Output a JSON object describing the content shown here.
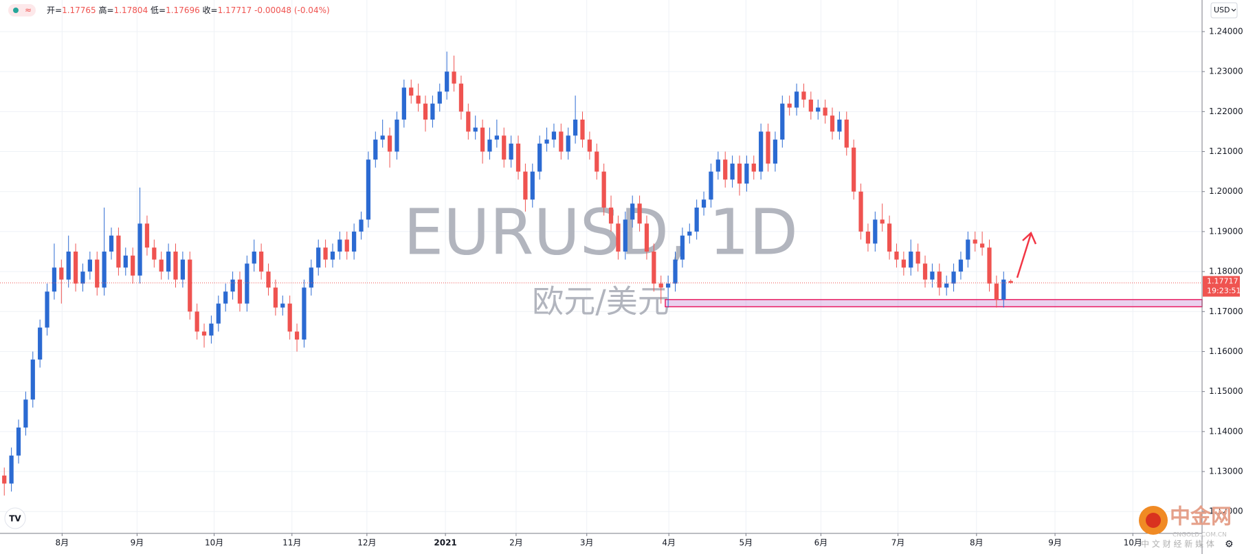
{
  "chart_data": {
    "type": "candlestick",
    "symbol_title": "EURUSD, 1D",
    "description": "欧元/美元",
    "currency": "USD",
    "countdown": "19:23:51",
    "legend_labels": [
      "开=",
      "高=",
      "低=",
      "收="
    ],
    "change": -0.00048,
    "change_pct_label": "(-0.04%)",
    "up_color": "#2b6ad2",
    "down_color": "#ef5350",
    "grid": true,
    "zone": [
      1.1712,
      1.173
    ],
    "zone_start": 92.6,
    "xlim": [
      -0.6,
      167.8
    ],
    "ylim": [
      1.11454,
      1.2479
    ],
    "xticks": [
      {
        "value": 8.1,
        "label": "8月"
      },
      {
        "value": 18.6,
        "label": "9月"
      },
      {
        "value": 29.4,
        "label": "10月"
      },
      {
        "value": 40.3,
        "label": "11月"
      },
      {
        "value": 50.8,
        "label": "12月"
      },
      {
        "value": 61.8,
        "label": "2021"
      },
      {
        "value": 71.7,
        "label": "2月"
      },
      {
        "value": 81.6,
        "label": "3月"
      },
      {
        "value": 93.1,
        "label": "4月"
      },
      {
        "value": 103.9,
        "label": "5月"
      },
      {
        "value": 114.4,
        "label": "6月"
      },
      {
        "value": 125.2,
        "label": "7月"
      },
      {
        "value": 136.2,
        "label": "8月"
      },
      {
        "value": 147.2,
        "label": "9月"
      },
      {
        "value": 158.1,
        "label": "10月"
      }
    ],
    "yticks": [
      {
        "value": 1.12,
        "label": "1.12000"
      },
      {
        "value": 1.13,
        "label": "1.13000"
      },
      {
        "value": 1.14,
        "label": "1.14000"
      },
      {
        "value": 1.15,
        "label": "1.15000"
      },
      {
        "value": 1.16,
        "label": "1.16000"
      },
      {
        "value": 1.17,
        "label": "1.17000"
      },
      {
        "value": 1.18,
        "label": "1.18000"
      },
      {
        "value": 1.19,
        "label": "1.19000"
      },
      {
        "value": 1.2,
        "label": "1.20000"
      },
      {
        "value": 1.21,
        "label": "1.21000"
      },
      {
        "value": 1.22,
        "label": "1.22000"
      },
      {
        "value": 1.23,
        "label": "1.23000"
      },
      {
        "value": 1.24,
        "label": "1.24000"
      }
    ],
    "candles": [
      [
        1.129,
        1.131,
        1.124,
        1.127
      ],
      [
        1.127,
        1.136,
        1.125,
        1.134
      ],
      [
        1.134,
        1.143,
        1.132,
        1.141
      ],
      [
        1.141,
        1.15,
        1.139,
        1.148
      ],
      [
        1.148,
        1.16,
        1.146,
        1.158
      ],
      [
        1.158,
        1.168,
        1.156,
        1.166
      ],
      [
        1.166,
        1.177,
        1.164,
        1.175
      ],
      [
        1.175,
        1.187,
        1.173,
        1.181
      ],
      [
        1.181,
        1.183,
        1.172,
        1.178
      ],
      [
        1.178,
        1.189,
        1.176,
        1.185
      ],
      [
        1.185,
        1.187,
        1.175,
        1.177
      ],
      [
        1.177,
        1.182,
        1.175,
        1.18
      ],
      [
        1.18,
        1.185,
        1.178,
        1.183
      ],
      [
        1.183,
        1.185,
        1.174,
        1.176
      ],
      [
        1.176,
        1.196,
        1.174,
        1.185
      ],
      [
        1.185,
        1.191,
        1.183,
        1.189
      ],
      [
        1.189,
        1.191,
        1.179,
        1.181
      ],
      [
        1.181,
        1.186,
        1.179,
        1.184
      ],
      [
        1.184,
        1.186,
        1.177,
        1.179
      ],
      [
        1.179,
        1.201,
        1.177,
        1.192
      ],
      [
        1.192,
        1.194,
        1.184,
        1.186
      ],
      [
        1.186,
        1.188,
        1.181,
        1.183
      ],
      [
        1.183,
        1.185,
        1.178,
        1.18
      ],
      [
        1.18,
        1.187,
        1.178,
        1.185
      ],
      [
        1.185,
        1.187,
        1.176,
        1.178
      ],
      [
        1.178,
        1.185,
        1.176,
        1.183
      ],
      [
        1.183,
        1.185,
        1.168,
        1.17
      ],
      [
        1.17,
        1.172,
        1.163,
        1.165
      ],
      [
        1.165,
        1.167,
        1.161,
        1.164
      ],
      [
        1.164,
        1.169,
        1.162,
        1.167
      ],
      [
        1.167,
        1.174,
        1.165,
        1.172
      ],
      [
        1.172,
        1.177,
        1.17,
        1.175
      ],
      [
        1.175,
        1.18,
        1.173,
        1.178
      ],
      [
        1.178,
        1.18,
        1.17,
        1.172
      ],
      [
        1.172,
        1.184,
        1.17,
        1.182
      ],
      [
        1.182,
        1.188,
        1.18,
        1.185
      ],
      [
        1.185,
        1.187,
        1.178,
        1.18
      ],
      [
        1.18,
        1.182,
        1.174,
        1.176
      ],
      [
        1.176,
        1.178,
        1.169,
        1.171
      ],
      [
        1.171,
        1.174,
        1.169,
        1.172
      ],
      [
        1.172,
        1.174,
        1.163,
        1.165
      ],
      [
        1.165,
        1.167,
        1.16,
        1.163
      ],
      [
        1.163,
        1.178,
        1.161,
        1.176
      ],
      [
        1.176,
        1.183,
        1.174,
        1.181
      ],
      [
        1.181,
        1.188,
        1.179,
        1.186
      ],
      [
        1.186,
        1.188,
        1.181,
        1.183
      ],
      [
        1.183,
        1.187,
        1.181,
        1.185
      ],
      [
        1.185,
        1.19,
        1.183,
        1.188
      ],
      [
        1.188,
        1.19,
        1.183,
        1.185
      ],
      [
        1.185,
        1.192,
        1.183,
        1.19
      ],
      [
        1.19,
        1.195,
        1.188,
        1.193
      ],
      [
        1.193,
        1.21,
        1.191,
        1.208
      ],
      [
        1.208,
        1.215,
        1.206,
        1.213
      ],
      [
        1.213,
        1.218,
        1.211,
        1.214
      ],
      [
        1.214,
        1.216,
        1.206,
        1.21
      ],
      [
        1.21,
        1.22,
        1.208,
        1.218
      ],
      [
        1.218,
        1.228,
        1.216,
        1.226
      ],
      [
        1.226,
        1.228,
        1.222,
        1.224
      ],
      [
        1.224,
        1.227,
        1.22,
        1.222
      ],
      [
        1.222,
        1.224,
        1.215,
        1.218
      ],
      [
        1.218,
        1.224,
        1.216,
        1.222
      ],
      [
        1.222,
        1.227,
        1.22,
        1.225
      ],
      [
        1.225,
        1.235,
        1.223,
        1.23
      ],
      [
        1.23,
        1.234,
        1.225,
        1.227
      ],
      [
        1.227,
        1.229,
        1.218,
        1.22
      ],
      [
        1.22,
        1.222,
        1.213,
        1.215
      ],
      [
        1.215,
        1.219,
        1.213,
        1.216
      ],
      [
        1.216,
        1.218,
        1.207,
        1.21
      ],
      [
        1.21,
        1.216,
        1.208,
        1.213
      ],
      [
        1.213,
        1.218,
        1.211,
        1.214
      ],
      [
        1.214,
        1.216,
        1.206,
        1.208
      ],
      [
        1.208,
        1.214,
        1.206,
        1.212
      ],
      [
        1.212,
        1.214,
        1.203,
        1.205
      ],
      [
        1.205,
        1.207,
        1.195,
        1.198
      ],
      [
        1.198,
        1.207,
        1.196,
        1.205
      ],
      [
        1.205,
        1.214,
        1.203,
        1.212
      ],
      [
        1.212,
        1.216,
        1.21,
        1.213
      ],
      [
        1.213,
        1.217,
        1.211,
        1.215
      ],
      [
        1.215,
        1.217,
        1.208,
        1.21
      ],
      [
        1.21,
        1.216,
        1.208,
        1.214
      ],
      [
        1.214,
        1.224,
        1.212,
        1.218
      ],
      [
        1.218,
        1.22,
        1.211,
        1.213
      ],
      [
        1.213,
        1.215,
        1.208,
        1.21
      ],
      [
        1.21,
        1.212,
        1.203,
        1.205
      ],
      [
        1.205,
        1.207,
        1.194,
        1.196
      ],
      [
        1.196,
        1.199,
        1.19,
        1.192
      ],
      [
        1.192,
        1.194,
        1.183,
        1.185
      ],
      [
        1.185,
        1.195,
        1.183,
        1.193
      ],
      [
        1.193,
        1.199,
        1.191,
        1.197
      ],
      [
        1.197,
        1.199,
        1.19,
        1.192
      ],
      [
        1.192,
        1.194,
        1.183,
        1.185
      ],
      [
        1.185,
        1.187,
        1.175,
        1.177
      ],
      [
        1.177,
        1.179,
        1.172,
        1.176
      ],
      [
        1.176,
        1.179,
        1.171,
        1.177
      ],
      [
        1.177,
        1.185,
        1.175,
        1.183
      ],
      [
        1.183,
        1.191,
        1.181,
        1.189
      ],
      [
        1.189,
        1.192,
        1.187,
        1.19
      ],
      [
        1.19,
        1.198,
        1.188,
        1.196
      ],
      [
        1.196,
        1.2,
        1.194,
        1.198
      ],
      [
        1.198,
        1.207,
        1.196,
        1.205
      ],
      [
        1.205,
        1.21,
        1.203,
        1.208
      ],
      [
        1.208,
        1.21,
        1.201,
        1.203
      ],
      [
        1.203,
        1.209,
        1.201,
        1.207
      ],
      [
        1.207,
        1.209,
        1.199,
        1.202
      ],
      [
        1.202,
        1.209,
        1.2,
        1.207
      ],
      [
        1.207,
        1.209,
        1.203,
        1.205
      ],
      [
        1.205,
        1.217,
        1.203,
        1.215
      ],
      [
        1.215,
        1.217,
        1.205,
        1.207
      ],
      [
        1.207,
        1.215,
        1.205,
        1.213
      ],
      [
        1.213,
        1.224,
        1.211,
        1.222
      ],
      [
        1.222,
        1.224,
        1.219,
        1.221
      ],
      [
        1.221,
        1.227,
        1.219,
        1.225
      ],
      [
        1.225,
        1.227,
        1.221,
        1.223
      ],
      [
        1.223,
        1.225,
        1.218,
        1.22
      ],
      [
        1.22,
        1.223,
        1.218,
        1.221
      ],
      [
        1.221,
        1.223,
        1.217,
        1.219
      ],
      [
        1.219,
        1.221,
        1.213,
        1.215
      ],
      [
        1.215,
        1.22,
        1.213,
        1.218
      ],
      [
        1.218,
        1.22,
        1.209,
        1.211
      ],
      [
        1.211,
        1.213,
        1.198,
        1.2
      ],
      [
        1.2,
        1.202,
        1.188,
        1.19
      ],
      [
        1.19,
        1.192,
        1.185,
        1.187
      ],
      [
        1.187,
        1.195,
        1.185,
        1.193
      ],
      [
        1.193,
        1.197,
        1.19,
        1.192
      ],
      [
        1.192,
        1.194,
        1.183,
        1.185
      ],
      [
        1.185,
        1.187,
        1.181,
        1.183
      ],
      [
        1.183,
        1.185,
        1.179,
        1.181
      ],
      [
        1.181,
        1.188,
        1.179,
        1.185
      ],
      [
        1.185,
        1.187,
        1.18,
        1.182
      ],
      [
        1.182,
        1.184,
        1.176,
        1.178
      ],
      [
        1.178,
        1.182,
        1.176,
        1.18
      ],
      [
        1.18,
        1.182,
        1.174,
        1.176
      ],
      [
        1.176,
        1.179,
        1.174,
        1.177
      ],
      [
        1.177,
        1.182,
        1.175,
        1.18
      ],
      [
        1.18,
        1.185,
        1.178,
        1.183
      ],
      [
        1.183,
        1.19,
        1.181,
        1.188
      ],
      [
        1.188,
        1.19,
        1.185,
        1.187
      ],
      [
        1.187,
        1.19,
        1.184,
        1.186
      ],
      [
        1.186,
        1.188,
        1.175,
        1.177
      ],
      [
        1.177,
        1.179,
        1.171,
        1.173
      ],
      [
        1.173,
        1.18,
        1.171,
        1.178
      ],
      [
        1.17765,
        1.17804,
        1.17696,
        1.17717
      ]
    ]
  },
  "branding": {
    "name": "中金网",
    "site": "CNGOLD.COM.CN",
    "slogan": "中 文 财 经 新 媒 体"
  }
}
